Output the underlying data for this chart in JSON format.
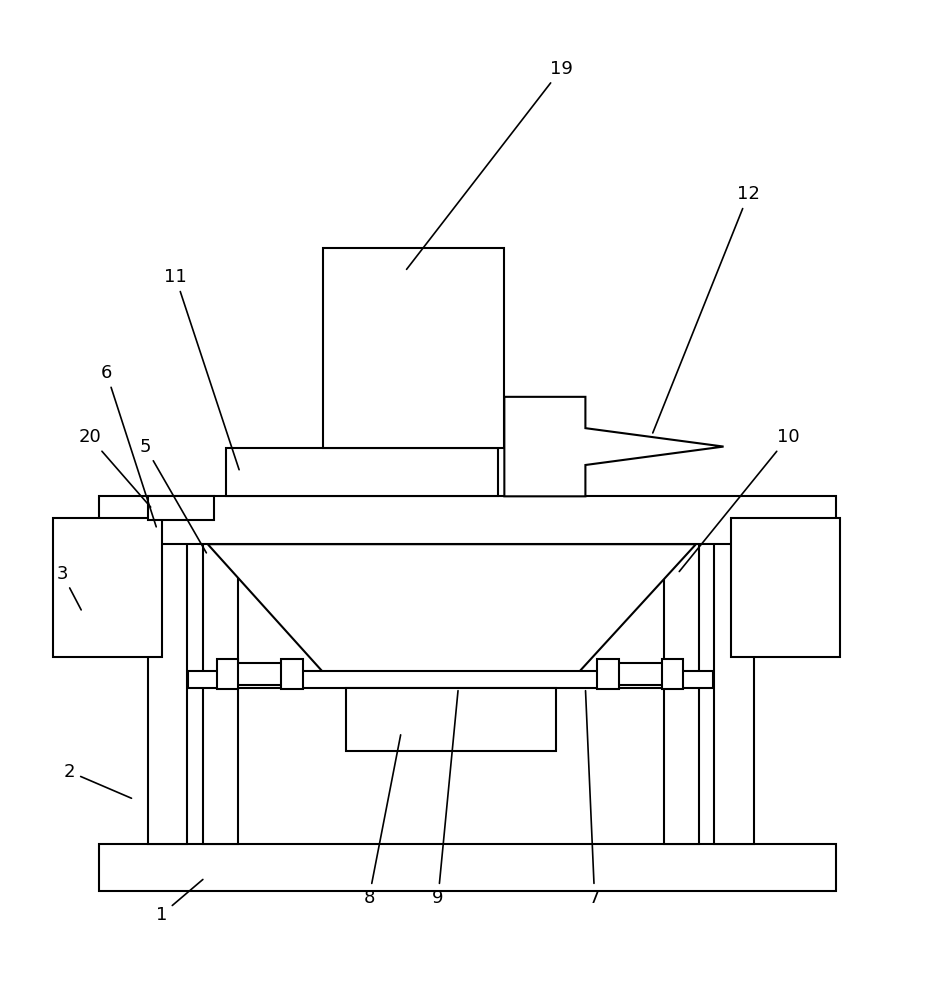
{
  "bg_color": "#ffffff",
  "line_color": "#000000",
  "lw": 1.5,
  "fig_w": 9.35,
  "fig_h": 10.0
}
